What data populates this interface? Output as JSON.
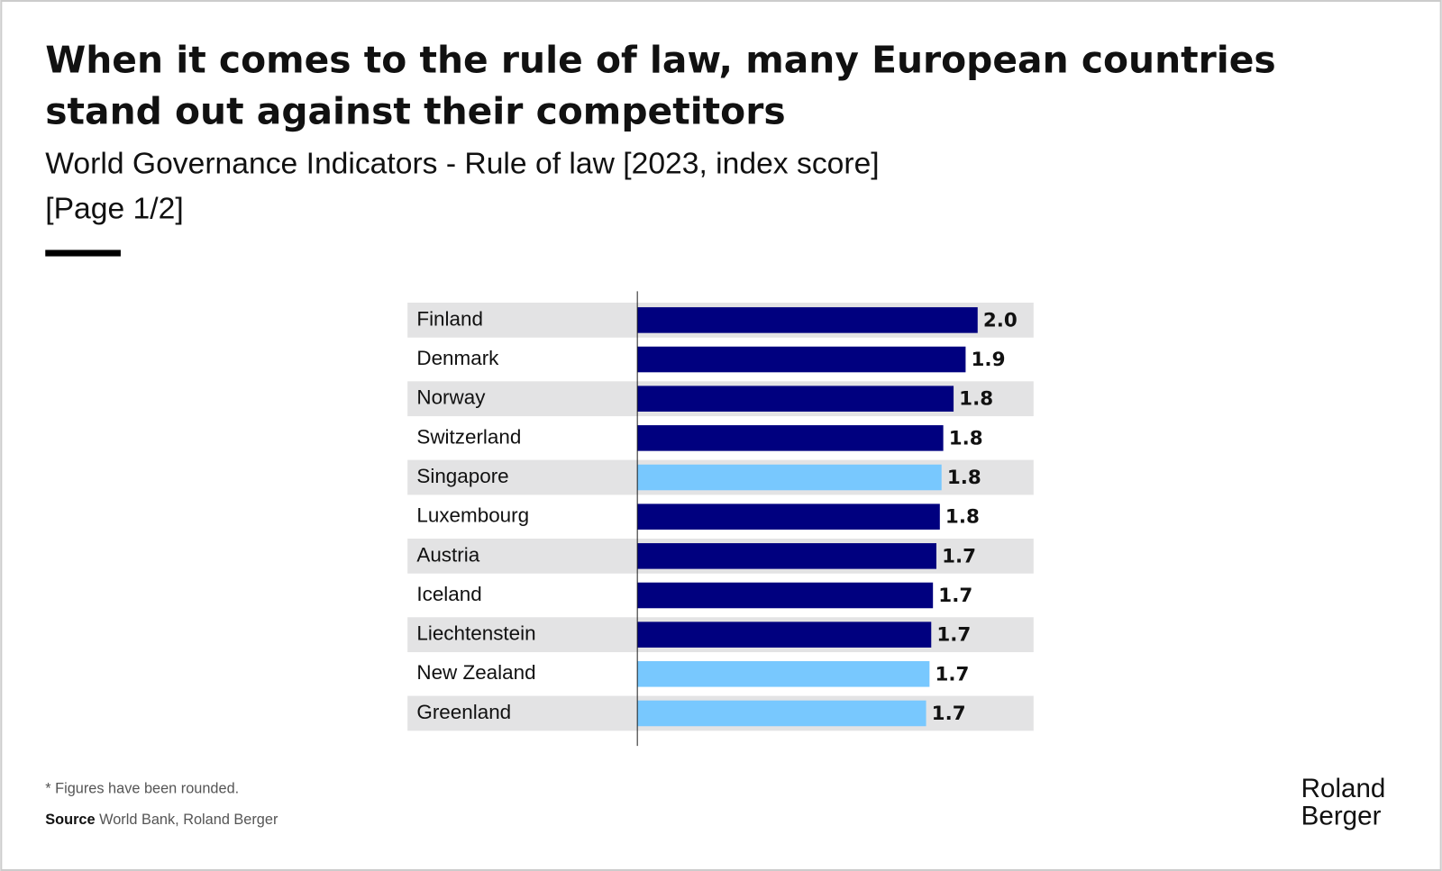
{
  "chart_data": {
    "type": "barh",
    "title": [
      "When it comes to the rule of law, many European countries",
      "stand out against their competitors"
    ],
    "subtitle": [
      "World Governance Indicators  - Rule of law [2023, index score]",
      "[Page 1/2]"
    ],
    "categories": [
      "Finland",
      "Denmark",
      "Norway",
      "Switzerland",
      "Singapore",
      "Luxembourg",
      "Austria",
      "Iceland",
      "Liechtenstein",
      "New Zealand",
      "Greenland"
    ],
    "values": [
      1.98,
      1.91,
      1.84,
      1.78,
      1.77,
      1.76,
      1.74,
      1.72,
      1.71,
      1.7,
      1.68
    ],
    "value_labels": [
      "2.0",
      "1.9",
      "1.8",
      "1.8",
      "1.8",
      "1.8",
      "1.7",
      "1.7",
      "1.7",
      "1.7",
      "1.7"
    ],
    "colors": [
      "#00007f",
      "#00007f",
      "#00007f",
      "#00007f",
      "#78c8fe",
      "#00007f",
      "#00007f",
      "#00007f",
      "#00007f",
      "#78c8fe",
      "#78c8fe"
    ],
    "xlim": [
      0,
      2.3
    ],
    "footnote": "* Figures have been rounded.",
    "source_label": "Source",
    "source": "World Bank, Roland Berger",
    "logo": [
      "Roland",
      "Berger"
    ]
  }
}
